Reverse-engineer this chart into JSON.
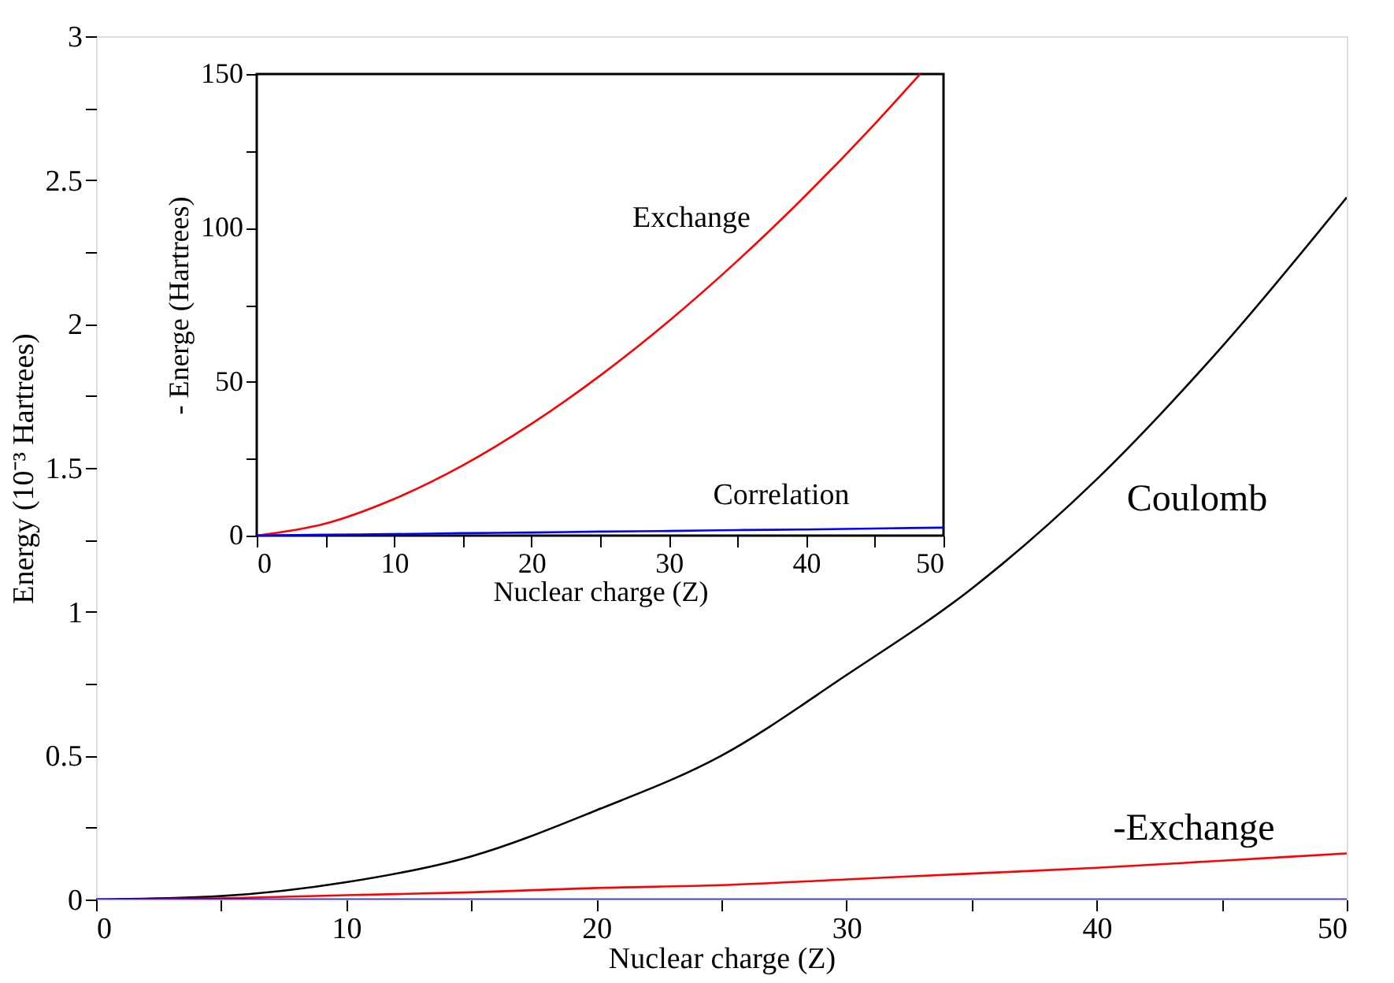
{
  "chart_data": [
    {
      "type": "line",
      "xlabel": "Nuclear charge (Z)",
      "ylabel": "Energy (10⁻³ Hartrees)",
      "grid": false,
      "legend": false,
      "x": [
        0,
        5,
        10,
        15,
        20,
        25,
        30,
        35,
        40,
        45,
        50
      ],
      "series": [
        {
          "color": "#000000",
          "values": [
            0,
            0.012,
            0.06,
            0.15,
            0.31,
            0.5,
            0.78,
            1.08,
            1.46,
            1.92,
            2.44
          ]
        },
        {
          "color": "#ff0000",
          "values": [
            0,
            0.004,
            0.015,
            0.025,
            0.04,
            0.05,
            0.07,
            0.09,
            0.11,
            0.135,
            0.16
          ]
        },
        {
          "color": "#0000ff",
          "values": [
            0,
            0,
            0,
            0,
            0,
            0,
            0,
            0,
            0,
            0,
            0
          ]
        }
      ],
      "xlim": [
        0,
        50
      ],
      "xticks": [
        0,
        {
          "value": 5,
          "label": null
        },
        10,
        {
          "value": 15,
          "label": null
        },
        20,
        {
          "value": 25,
          "label": null
        },
        30,
        {
          "value": 35,
          "label": null
        },
        40,
        {
          "value": 45,
          "label": null
        },
        50
      ],
      "ylim": [
        0,
        3
      ],
      "yticks": [
        0,
        {
          "value": 0.25,
          "label": null
        },
        0.5,
        {
          "value": 0.75,
          "label": null
        },
        1,
        {
          "value": 1.25,
          "label": null
        },
        1.5,
        {
          "value": 1.75,
          "label": null
        },
        2,
        {
          "value": 2.25,
          "label": null
        },
        2.5,
        {
          "value": 2.75,
          "label": null
        },
        3
      ],
      "annotations": [
        "Coulomb",
        "-Exchange"
      ]
    },
    {
      "type": "line",
      "xlabel": "Nuclear charge (Z)",
      "ylabel": "- Energe (Hartrees)",
      "grid": false,
      "legend": false,
      "series": [
        {
          "color": "#ff0000",
          "x": [
            0,
            5,
            10,
            15,
            20,
            25,
            30,
            35,
            40,
            45,
            48.3
          ],
          "values": [
            0,
            3.9,
            11.9,
            22.8,
            36.3,
            52,
            69.7,
            89.3,
            110.7,
            133.8,
            150
          ]
        },
        {
          "color": "#0000ff",
          "x": [
            0,
            5,
            10,
            15,
            20,
            25,
            30,
            35,
            40,
            45,
            50
          ],
          "values": [
            0,
            0.3,
            0.5,
            0.8,
            1,
            1.3,
            1.5,
            1.8,
            2,
            2.3,
            2.6
          ]
        }
      ],
      "xlim": [
        0,
        50
      ],
      "xticks": [
        0,
        {
          "value": 5,
          "label": null
        },
        10,
        {
          "value": 15,
          "label": null
        },
        20,
        {
          "value": 25,
          "label": null
        },
        30,
        {
          "value": 35,
          "label": null
        },
        40,
        {
          "value": 45,
          "label": null
        },
        50
      ],
      "ylim": [
        0,
        150
      ],
      "yticks": [
        0,
        {
          "value": 25,
          "label": null
        },
        50,
        {
          "value": 75,
          "label": null
        },
        100,
        {
          "value": 125,
          "label": null
        },
        150
      ],
      "annotations": [
        "Exchange",
        "Correlation"
      ]
    }
  ]
}
